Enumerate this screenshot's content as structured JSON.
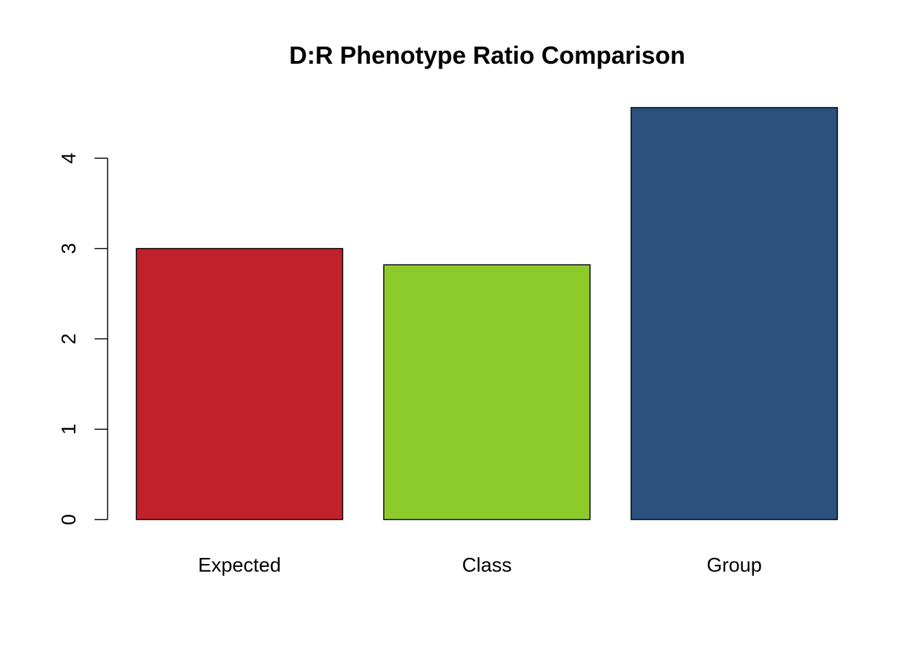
{
  "chart_data": {
    "type": "bar",
    "title": "D:R Phenotype Ratio Comparison",
    "xlabel": "",
    "ylabel": "",
    "categories": [
      "Expected",
      "Class",
      "Group"
    ],
    "values": [
      3.0,
      2.82,
      4.56
    ],
    "colors": [
      "#C1212B",
      "#8DCB2A",
      "#2B517D"
    ],
    "ylim": [
      0,
      4.56
    ],
    "yticks": [
      0,
      1,
      2,
      3,
      4
    ],
    "ytick_labels": [
      "0",
      "1",
      "2",
      "3",
      "4"
    ],
    "grid": false,
    "legend": "none"
  }
}
